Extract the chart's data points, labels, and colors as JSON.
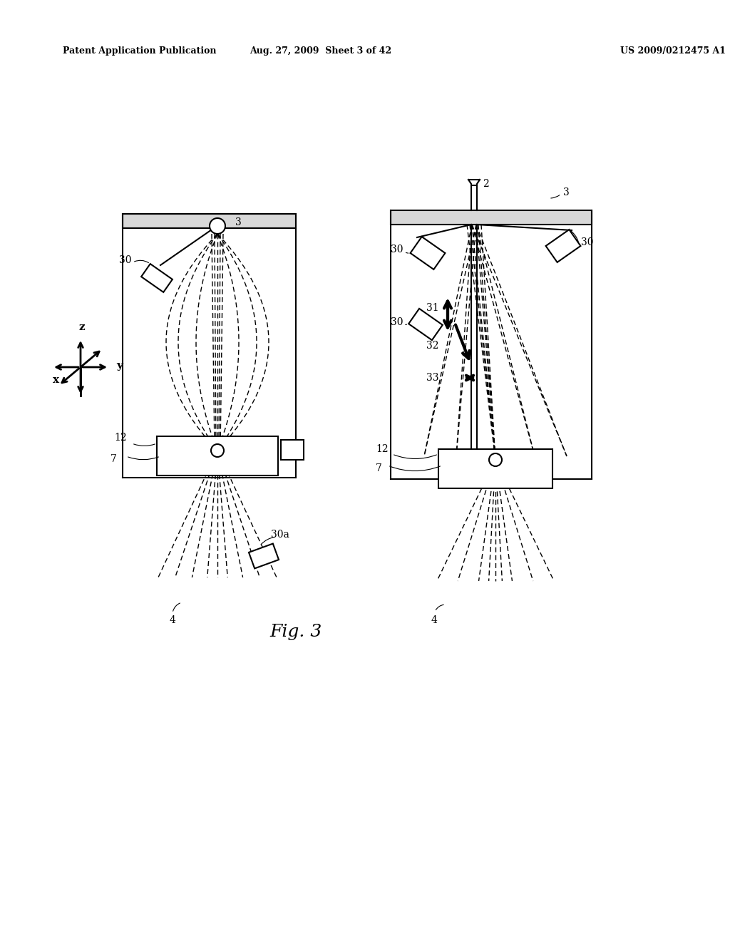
{
  "bg_color": "#ffffff",
  "header_left": "Patent Application Publication",
  "header_center": "Aug. 27, 2009  Sheet 3 of 42",
  "header_right": "US 2009/0212475 A1",
  "figure_label": "Fig. 3",
  "fig_width": 10.24,
  "fig_height": 13.2
}
